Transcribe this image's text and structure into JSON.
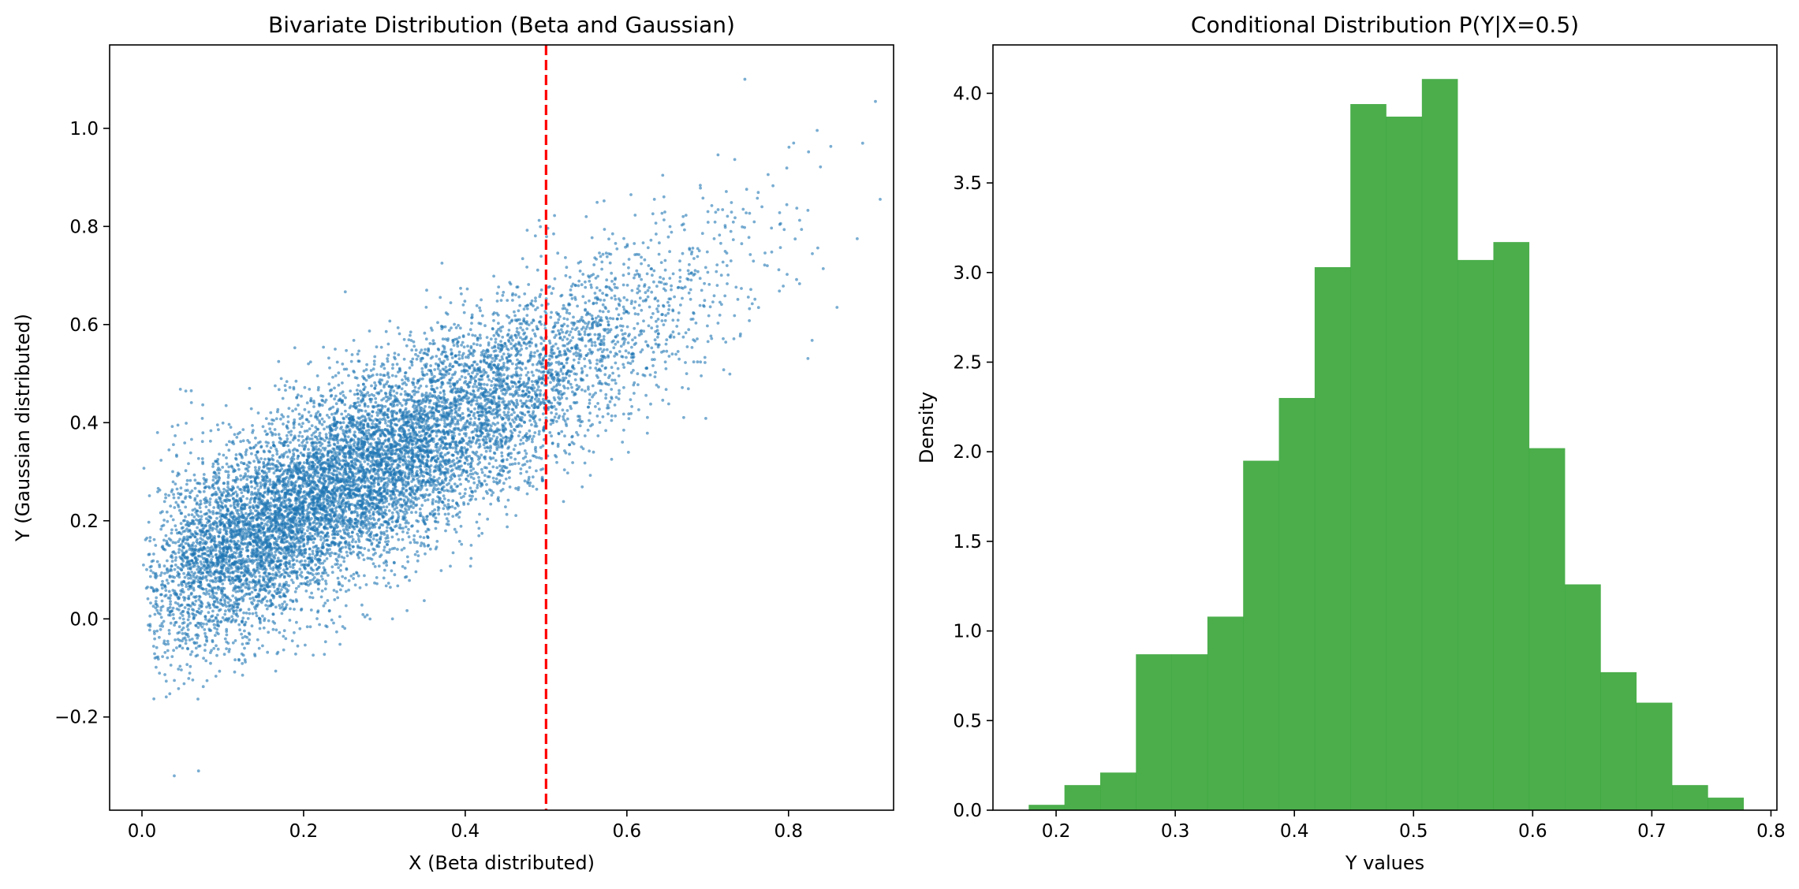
{
  "chart_data": [
    {
      "type": "scatter",
      "title": "Bivariate Distribution (Beta and Gaussian)",
      "xlabel": "X (Beta distributed)",
      "ylabel": "Y (Gaussian distributed)",
      "xlim": [
        -0.04,
        0.93
      ],
      "ylim": [
        -0.39,
        1.17
      ],
      "xticks": [
        0.0,
        0.2,
        0.4,
        0.6,
        0.8
      ],
      "xtick_labels": [
        "0.0",
        "0.2",
        "0.4",
        "0.6",
        "0.8"
      ],
      "yticks": [
        -0.2,
        0.0,
        0.2,
        0.4,
        0.6,
        0.8,
        1.0
      ],
      "ytick_labels": [
        "−0.2",
        "0.0",
        "0.2",
        "0.4",
        "0.6",
        "0.8",
        "1.0"
      ],
      "grid": false,
      "series": [
        {
          "color": "#1f77b4",
          "alpha": 0.6,
          "approx_point_count": 10000,
          "distribution": {
            "x": "beta(2, 5)",
            "y_given_x": "normal(mean = 0.9*x + 0.05, sd = 0.1)"
          },
          "outliers": [
            {
              "x": 0.746,
              "y": 1.1
            },
            {
              "x": 0.885,
              "y": 0.775
            },
            {
              "x": 0.86,
              "y": 0.635
            },
            {
              "x": 0.07,
              "y": -0.31
            },
            {
              "x": 0.04,
              "y": -0.32
            },
            {
              "x": 0.061,
              "y": 0.465
            },
            {
              "x": 0.31,
              "y": 0.0
            }
          ]
        }
      ],
      "reference_line": {
        "orientation": "vertical",
        "x": 0.5,
        "color": "#ff0000",
        "style": "dashed"
      }
    },
    {
      "type": "bar",
      "title": "Conditional Distribution P(Y|X=0.5)",
      "xlabel": "Y values",
      "ylabel": "Density",
      "xlim": [
        0.147,
        0.805
      ],
      "ylim": [
        0,
        4.27
      ],
      "xticks": [
        0.2,
        0.3,
        0.4,
        0.5,
        0.6,
        0.7,
        0.8
      ],
      "xtick_labels": [
        "0.2",
        "0.3",
        "0.4",
        "0.5",
        "0.6",
        "0.7",
        "0.8"
      ],
      "yticks": [
        0.0,
        0.5,
        1.0,
        1.5,
        2.0,
        2.5,
        3.0,
        3.5,
        4.0
      ],
      "ytick_labels": [
        "0.0",
        "0.5",
        "1.0",
        "1.5",
        "2.0",
        "2.5",
        "3.0",
        "3.5",
        "4.0"
      ],
      "grid": false,
      "color": "#2ca02c",
      "alpha": 0.85,
      "bin_edges": [
        0.177,
        0.207,
        0.237,
        0.267,
        0.297,
        0.327,
        0.357,
        0.387,
        0.417,
        0.447,
        0.477,
        0.507,
        0.537,
        0.567,
        0.597,
        0.627,
        0.657,
        0.687,
        0.717,
        0.747,
        0.777
      ],
      "values": [
        0.03,
        0.14,
        0.21,
        0.87,
        0.87,
        1.08,
        1.95,
        2.3,
        3.03,
        3.94,
        3.87,
        4.08,
        3.07,
        3.17,
        2.02,
        1.26,
        0.77,
        0.6,
        0.14,
        0.07
      ]
    }
  ]
}
